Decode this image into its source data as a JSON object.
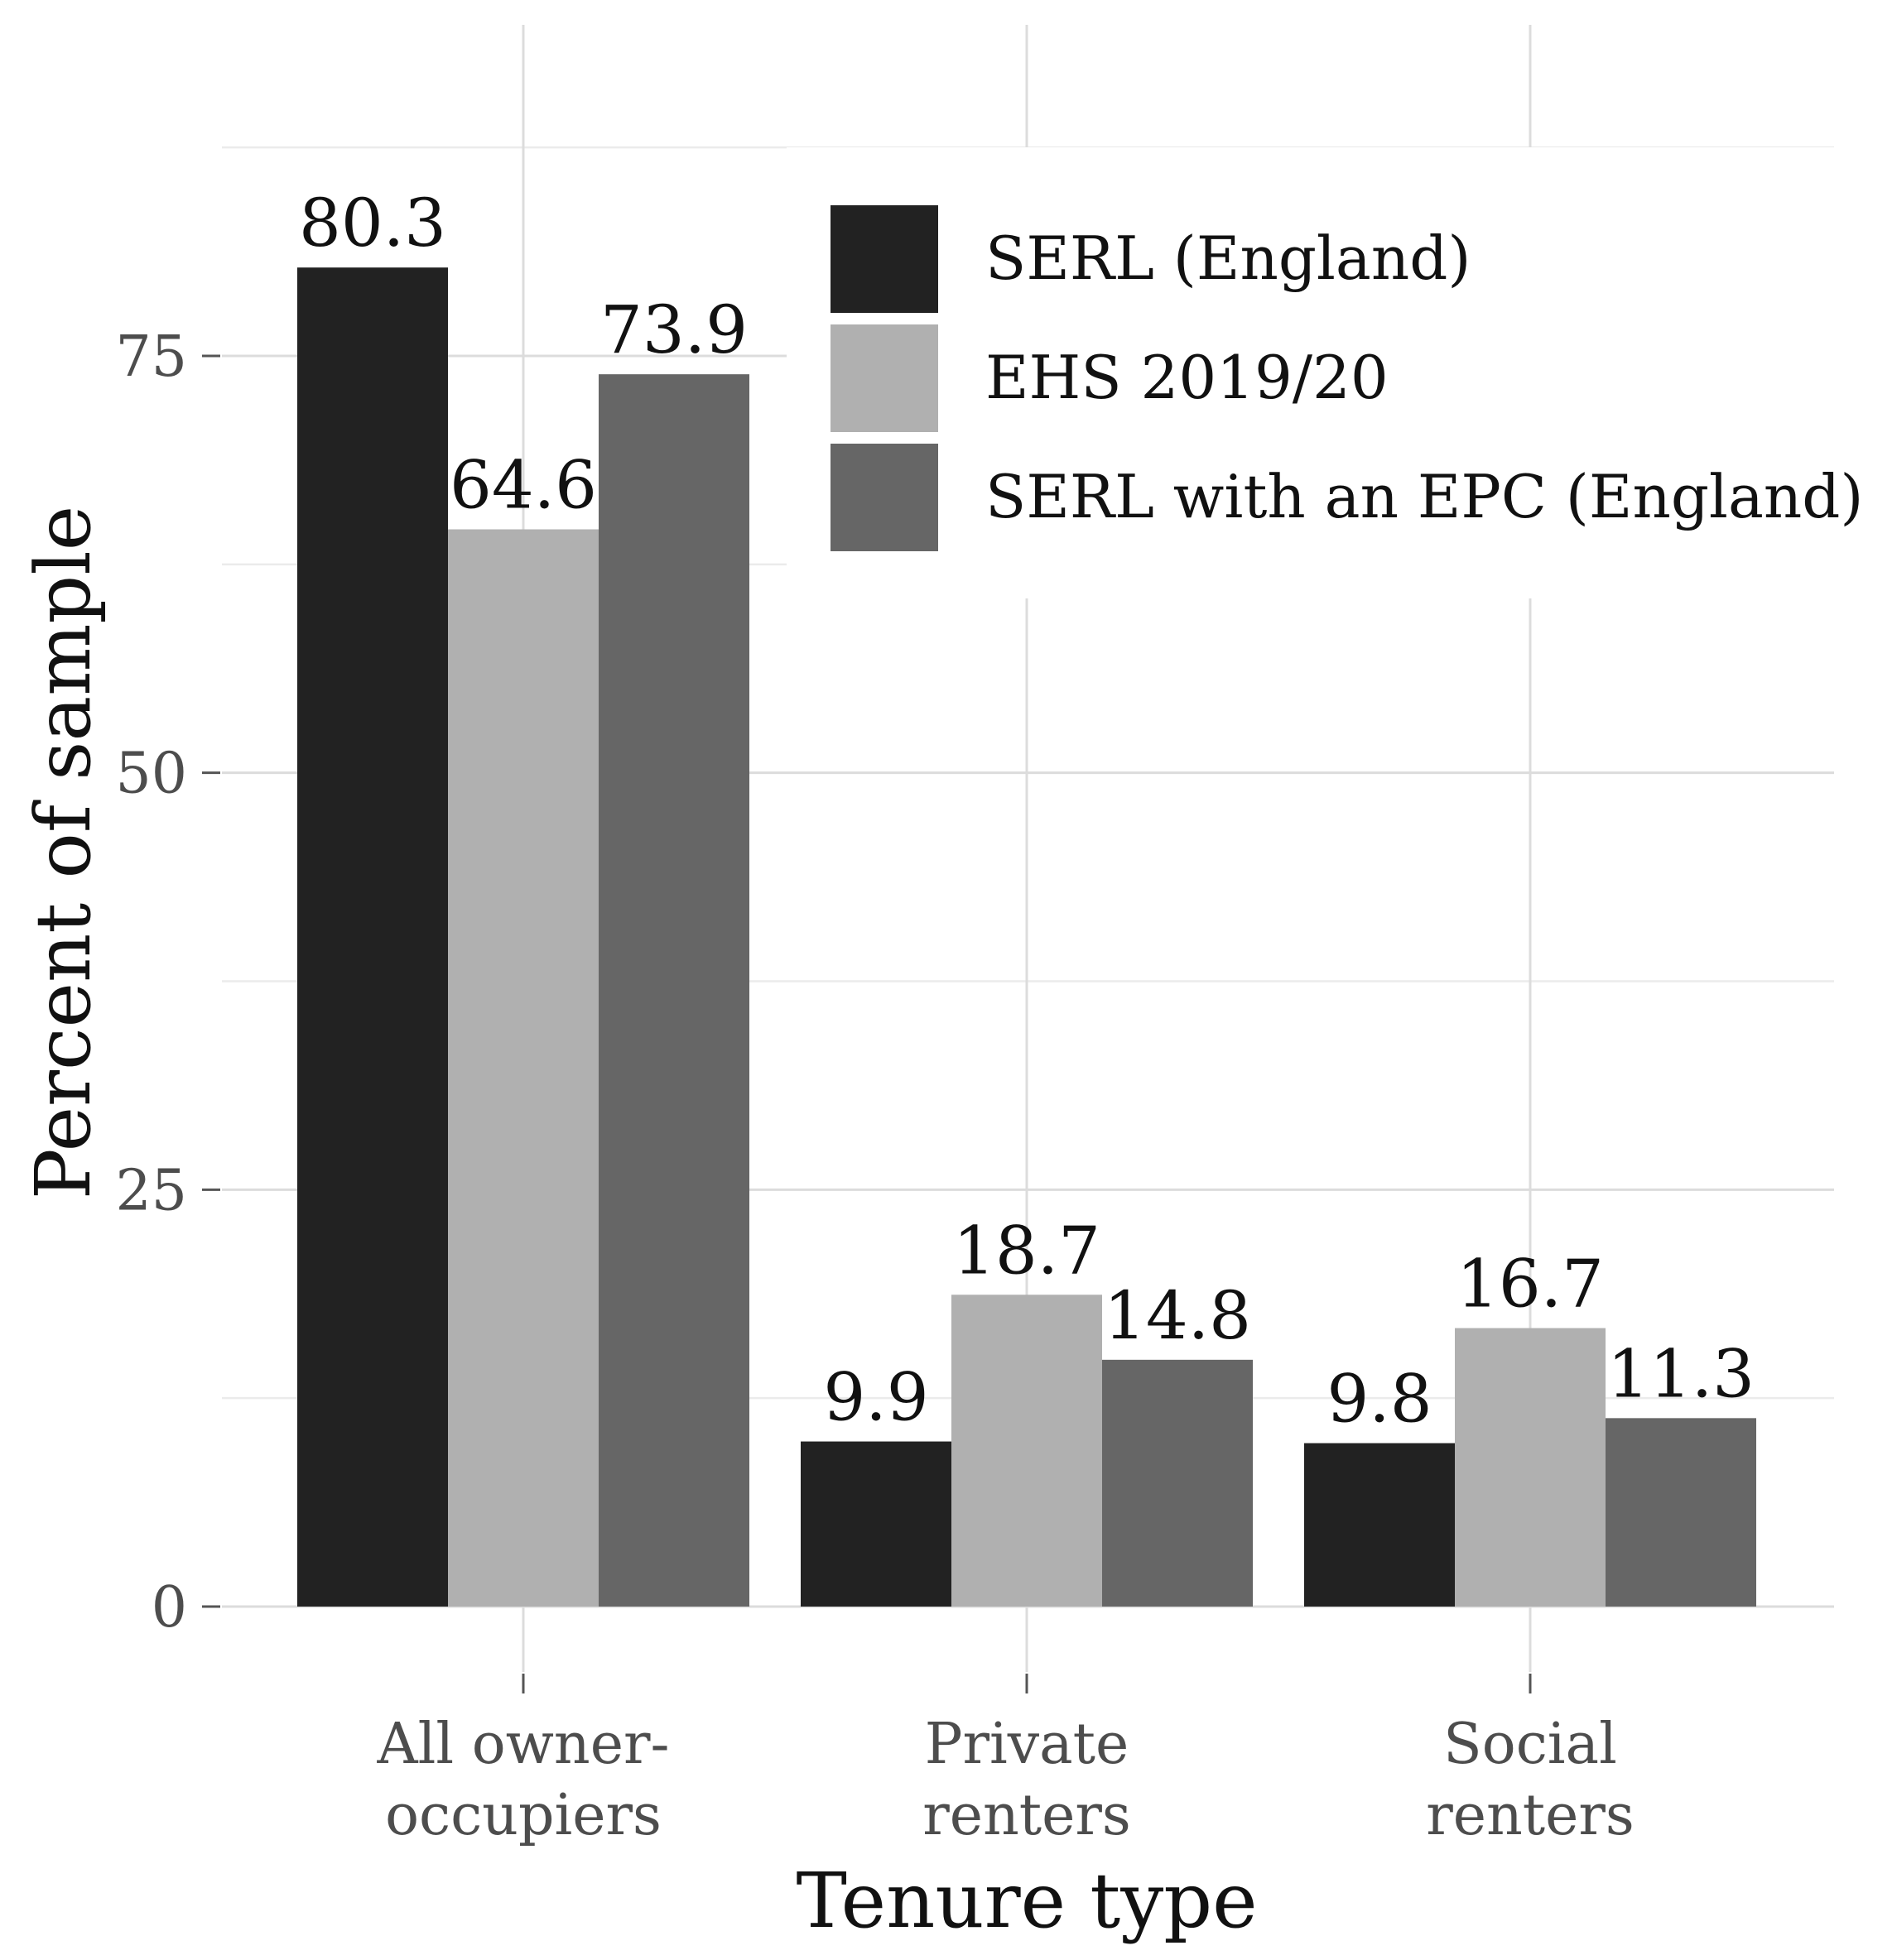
{
  "chart_data": {
    "type": "bar",
    "title": "",
    "xlabel": "Tenure type",
    "ylabel": "Percent of sample",
    "categories": [
      [
        "All owner-",
        "occupiers"
      ],
      [
        "Private",
        "renters"
      ],
      [
        "Social",
        "renters"
      ]
    ],
    "series": [
      {
        "name": "SERL (England)",
        "color": "#222222",
        "values": [
          80.3,
          9.9,
          9.8
        ],
        "labels": [
          "80.3",
          "9.9",
          "9.8"
        ]
      },
      {
        "name": "EHS 2019/20",
        "color": "#b0b0b0",
        "values": [
          64.6,
          18.7,
          16.7
        ],
        "labels": [
          "64.6",
          "18.7",
          "16.7"
        ]
      },
      {
        "name": "SERL with an EPC (England)",
        "color": "#666666",
        "values": [
          73.9,
          14.8,
          11.3
        ],
        "labels": [
          "73.9",
          "14.8",
          "11.3"
        ]
      }
    ],
    "yticks": [
      0,
      25,
      50,
      75
    ],
    "ytick_labels": [
      "0",
      "25",
      "50",
      "75"
    ],
    "yminor": [
      12.5,
      37.5,
      62.5,
      87.5
    ],
    "ylim": [
      -4.3,
      94
    ],
    "grid": true,
    "legend_position": "top-right (inside)"
  }
}
